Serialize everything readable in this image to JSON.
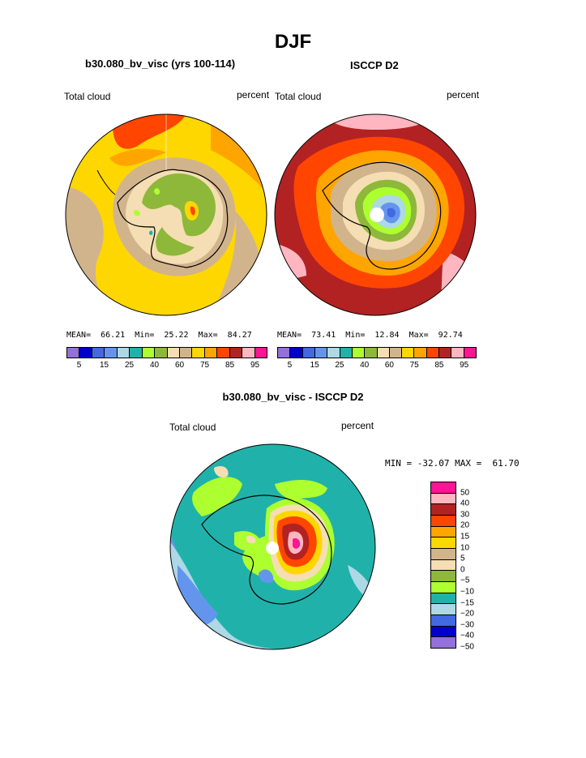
{
  "page": {
    "title": "DJF",
    "left_title": "b30.080_bv_visc (yrs 100-114)",
    "right_title": "ISCCP D2",
    "diff_title": "b30.080_bv_visc - ISCCP D2"
  },
  "colors": {
    "abs_palette": [
      "#9370DB",
      "#0000CD",
      "#4169E1",
      "#6495ED",
      "#ADD8E6",
      "#20B2AA",
      "#ADFF2F",
      "#8DB83A",
      "#F5DEB3",
      "#D2B48C",
      "#FFD700",
      "#FFA500",
      "#FF4500",
      "#B22222",
      "#FFB6C1",
      "#FF1493"
    ],
    "diff_palette": [
      "#FF1493",
      "#FFB6C1",
      "#B22222",
      "#FF4500",
      "#FFA500",
      "#FFD700",
      "#D2B48C",
      "#F5DEB3",
      "#8DB83A",
      "#ADFF2F",
      "#20B2AA",
      "#ADD8E6",
      "#4169E1",
      "#0000CD",
      "#9370DB"
    ],
    "ice": "#ffffff"
  },
  "left_panel": {
    "var": "Total cloud",
    "units": "percent",
    "stats": "MEAN=  66.21  Min=  25.22  Max=  84.27"
  },
  "right_panel": {
    "var": "Total cloud",
    "units": "percent",
    "stats": "MEAN=  73.41  Min=  12.84  Max=  92.74"
  },
  "abs_ticks": [
    "5",
    "15",
    "25",
    "40",
    "60",
    "75",
    "85",
    "95"
  ],
  "diff_panel": {
    "var": "Total cloud",
    "units": "percent",
    "minmax": "MIN = -32.07 MAX =  61.70",
    "levels": [
      "50",
      "40",
      "30",
      "20",
      "15",
      "10",
      "5",
      "0",
      "−5",
      "−10",
      "−15",
      "−20",
      "−30",
      "−40",
      "−50"
    ]
  }
}
